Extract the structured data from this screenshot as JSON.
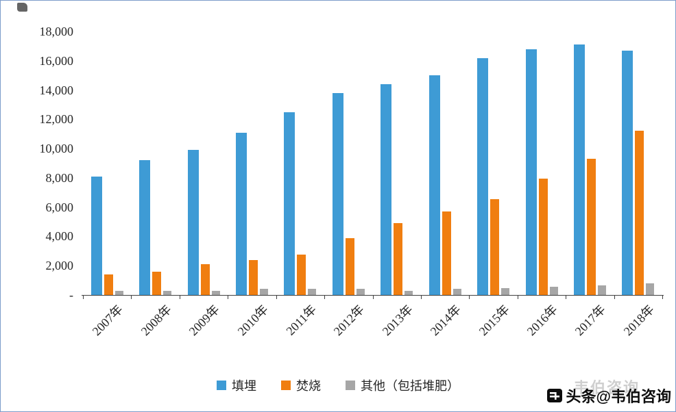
{
  "chart_data": {
    "type": "bar",
    "title": "",
    "xlabel": "",
    "ylabel": "",
    "categories": [
      "2007年",
      "2008年",
      "2009年",
      "2010年",
      "2011年",
      "2012年",
      "2013年",
      "2014年",
      "2015年",
      "2016年",
      "2017年",
      "2018年"
    ],
    "series": [
      {
        "name": "填埋",
        "color": "#3e9bd5",
        "values": [
          8100,
          9200,
          9900,
          11100,
          12500,
          13800,
          14400,
          15000,
          16200,
          16800,
          17100,
          16700
        ]
      },
      {
        "name": "焚烧",
        "color": "#f07e10",
        "values": [
          1400,
          1600,
          2100,
          2400,
          2750,
          3900,
          4900,
          5700,
          6550,
          7950,
          9300,
          11200
        ]
      },
      {
        "name": "其他（包括堆肥）",
        "color": "#a6a6a6",
        "values": [
          300,
          300,
          300,
          400,
          400,
          400,
          300,
          400,
          450,
          550,
          650,
          800
        ]
      }
    ],
    "ylim": [
      0,
      18000
    ],
    "ytick_step": 2000,
    "ytick_labels": [
      "-",
      "2,000",
      "4,000",
      "6,000",
      "8,000",
      "10,000",
      "12,000",
      "14,000",
      "16,000",
      "18,000"
    ],
    "grid": false,
    "legend_position": "bottom"
  },
  "watermark": {
    "text": "头条@韦伯咨询",
    "faint_text": "韦伯咨询"
  },
  "colors": {
    "frame_border": "#7c9cc9",
    "axis": "#404040",
    "label_text": "#262626"
  }
}
